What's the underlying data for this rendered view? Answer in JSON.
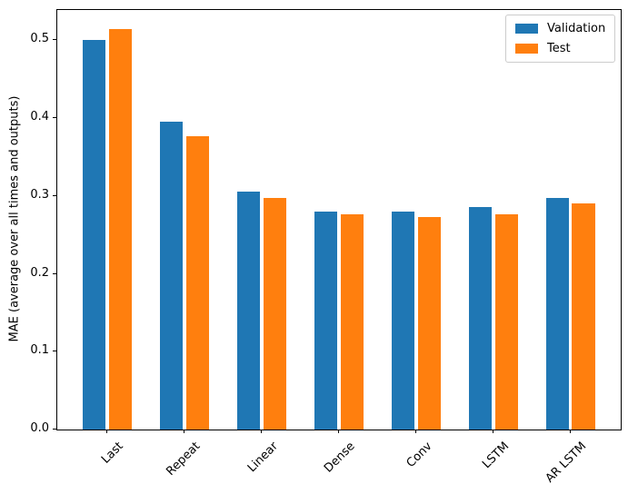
{
  "chart_data": {
    "type": "bar",
    "title": "",
    "xlabel": "",
    "ylabel": "MAE (average over all times and outputs)",
    "categories": [
      "Last",
      "Repeat",
      "Linear",
      "Dense",
      "Conv",
      "LSTM",
      "AR LSTM"
    ],
    "series": [
      {
        "name": "Validation",
        "color": "#1f77b4",
        "values": [
          0.501,
          0.395,
          0.306,
          0.28,
          0.28,
          0.286,
          0.297
        ]
      },
      {
        "name": "Test",
        "color": "#ff7f0e",
        "values": [
          0.515,
          0.377,
          0.298,
          0.276,
          0.273,
          0.276,
          0.291
        ]
      }
    ],
    "yticks": [
      0.0,
      0.1,
      0.2,
      0.3,
      0.4,
      0.5
    ],
    "ytick_labels": [
      "0.0",
      "0.1",
      "0.2",
      "0.3",
      "0.4",
      "0.5"
    ],
    "ylim": [
      0,
      0.539
    ],
    "grid": false,
    "legend_position": "upper right",
    "x_tick_rotation": 45,
    "bar_group_layout": {
      "bar_width_units": 0.3,
      "offsets_units": [
        -0.17,
        0.17
      ]
    }
  }
}
